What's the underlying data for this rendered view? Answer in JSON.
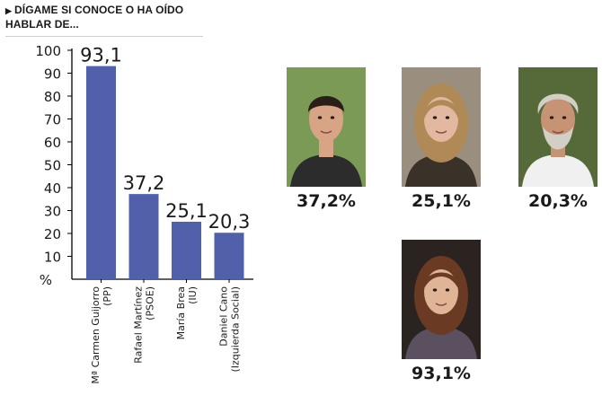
{
  "header": {
    "title_line1": "DÍGAME SI CONOCE O HA OÍDO",
    "title_line2": "HABLAR DE..."
  },
  "chart_data": {
    "type": "bar",
    "categories": [
      [
        "Mª Carmen Guijorro",
        "(PP)"
      ],
      [
        "Rafael Martínez",
        "(PSOE)"
      ],
      [
        "María Brea",
        "(IU)"
      ],
      [
        "Daniel Cano",
        "(Izquierda Social)"
      ]
    ],
    "values": [
      93.1,
      37.2,
      25.1,
      20.3
    ],
    "value_labels": [
      "93,1",
      "37,2",
      "25,1",
      "20,3"
    ],
    "ylim": [
      0,
      100
    ],
    "yticks": [
      10,
      20,
      30,
      40,
      50,
      60,
      70,
      80,
      90,
      100
    ],
    "ylabel": "%",
    "bar_color": "#5160aa",
    "grid": false
  },
  "photos": [
    {
      "name": "photo-rafael-martinez",
      "pct": "37,2%",
      "bg": "#7a9a56",
      "skin": "#d8a486",
      "hair": "#2a1f18",
      "clothes": "#2c2c2c"
    },
    {
      "name": "photo-maria-brea",
      "pct": "25,1%",
      "bg": "#9a8e7e",
      "skin": "#e2b9a0",
      "hair": "#b08a56",
      "clothes": "#3a3228"
    },
    {
      "name": "photo-daniel-cano",
      "pct": "20,3%",
      "bg": "#556a38",
      "skin": "#c79375",
      "hair": "#d2cfc6",
      "clothes": "#f0f0f0"
    },
    {
      "name": "photo-carmen-guijorro",
      "pct": "93,1%",
      "bg": "#2b2320",
      "skin": "#e0b597",
      "hair": "#6a3a22",
      "clothes": "#5a5060"
    }
  ]
}
